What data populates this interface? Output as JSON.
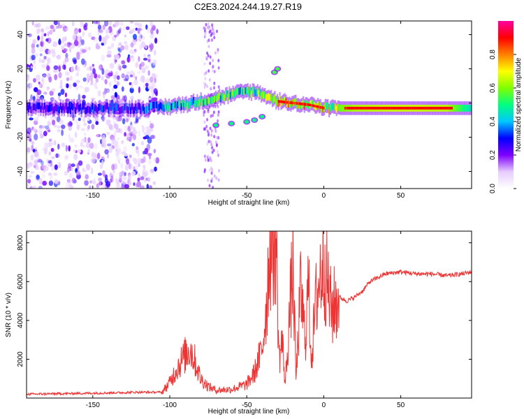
{
  "title": "C2E3.2024.244.19.27.R19",
  "chart_data": [
    {
      "type": "heatmap",
      "title": "C2E3.2024.244.19.27.R19",
      "xlabel": "Height of straight line (km)",
      "ylabel": "Frequency (Hz)",
      "xlim": [
        -193,
        96
      ],
      "ylim": [
        -50,
        48
      ],
      "x_ticks": [
        -150,
        -100,
        -50,
        0,
        50
      ],
      "y_ticks": [
        40,
        20,
        0,
        -20,
        -40
      ],
      "x_tick_labels": [
        "-150",
        "-100",
        "-50",
        "0",
        "50"
      ],
      "y_tick_labels": [
        "40",
        "20",
        "0",
        "-20",
        "-40"
      ],
      "colorbar": {
        "label": "Normalized spectral amplitude",
        "range": [
          0,
          1
        ],
        "ticks": [
          0.0,
          0.2,
          0.4,
          0.6,
          0.8
        ],
        "tick_labels": [
          "0.0",
          "0.2",
          "0.4",
          "0.6",
          "0.8"
        ],
        "colormap": [
          "#ffffff",
          "#e6ccff",
          "#7f00ff",
          "#0000ff",
          "#00c8ff",
          "#00ff80",
          "#80ff00",
          "#ffff00",
          "#ff8000",
          "#ff0000",
          "#ff00a0"
        ]
      },
      "ridge": {
        "x": [
          -190,
          -150,
          -120,
          -100,
          -80,
          -60,
          -50,
          -42,
          -35,
          -30,
          -20,
          -10,
          0,
          10,
          20,
          40,
          60,
          80,
          95
        ],
        "freq": [
          -3,
          -3,
          -3,
          -2,
          1,
          5,
          7,
          6,
          3,
          1,
          0,
          -1,
          -3,
          -3,
          -3,
          -3,
          -3,
          -3,
          -3
        ],
        "amplitude": [
          0.3,
          0.35,
          0.35,
          0.55,
          0.6,
          0.6,
          0.62,
          0.65,
          0.7,
          0.8,
          0.85,
          0.85,
          0.8,
          0.78,
          0.85,
          0.88,
          0.88,
          0.86,
          0.6
        ]
      },
      "secondary_features": [
        {
          "label": "lower branch",
          "x": [
            -70,
            -60,
            -50,
            -45,
            -40
          ],
          "freq": [
            -13,
            -12,
            -11,
            -10,
            -8
          ],
          "amplitude": 0.5
        },
        {
          "label": "upper spot",
          "x": [
            -32,
            -30
          ],
          "freq": [
            18,
            20
          ],
          "amplitude": 0.55
        }
      ],
      "noise_region_x": [
        -193,
        -108
      ]
    },
    {
      "type": "line",
      "xlabel": "Height of straight line (km)",
      "ylabel": "SNR (10 * v/v)",
      "xlim": [
        -193,
        96
      ],
      "ylim": [
        0,
        8600
      ],
      "x_ticks": [
        -150,
        -100,
        -50,
        0,
        50
      ],
      "y_ticks": [
        2000,
        4000,
        6000,
        8000
      ],
      "x_tick_labels": [
        "-150",
        "-100",
        "-50",
        "0",
        "50"
      ],
      "y_tick_labels": [
        "2000",
        "4000",
        "6000",
        "8000"
      ],
      "series": [
        {
          "name": "SNR",
          "color": "#ee3333",
          "x": [
            -193,
            -150,
            -120,
            -105,
            -100,
            -95,
            -90,
            -87,
            -84,
            -80,
            -75,
            -70,
            -60,
            -50,
            -45,
            -40,
            -37,
            -35,
            -33,
            -31,
            -29,
            -27,
            -25,
            -22,
            -20,
            -18,
            -15,
            -12,
            -10,
            -8,
            -5,
            -2,
            0,
            5,
            10,
            15,
            20,
            25,
            30,
            35,
            40,
            50,
            60,
            70,
            80,
            90,
            96
          ],
          "y": [
            200,
            250,
            300,
            300,
            800,
            1600,
            2200,
            2600,
            2000,
            1000,
            600,
            400,
            450,
            700,
            1300,
            2500,
            5000,
            8000,
            7800,
            8500,
            2000,
            3000,
            700,
            4500,
            6800,
            1000,
            5500,
            3000,
            6000,
            2000,
            5000,
            6500,
            7200,
            4500,
            5200,
            5000,
            5200,
            5500,
            6000,
            6200,
            6400,
            6500,
            6400,
            6400,
            6300,
            6400,
            6500
          ]
        }
      ]
    }
  ]
}
